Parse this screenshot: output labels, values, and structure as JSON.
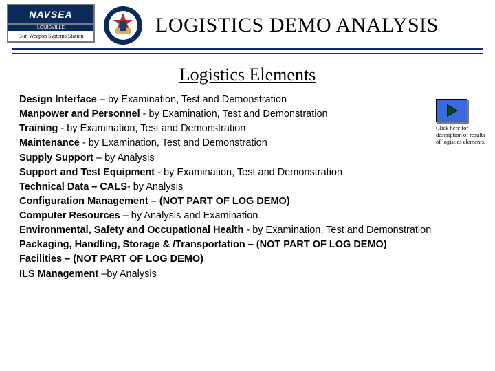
{
  "header": {
    "navsea_word": "NAVSEA",
    "navsea_city": "LOUISVILLE",
    "navsea_station": "Gun Weapon Systems Station",
    "main_title": "LOGISTICS  DEMO ANALYSIS"
  },
  "subtitle": " Logistics Elements ",
  "items": [
    {
      "label": "Design Interface",
      "sep": " – ",
      "desc": "by Examination, Test and Demonstration"
    },
    {
      "label": "Manpower and Personnel",
      "sep": " - ",
      "desc": "by Examination, Test and Demonstration"
    },
    {
      "label": "Training",
      "sep": " - ",
      "desc": "by Examination, Test and Demonstration"
    },
    {
      "label": "Maintenance",
      "sep": " - ",
      "desc": "by Examination, Test and Demonstration"
    },
    {
      "label": "Supply Support",
      "sep": " – ",
      "desc": "by Analysis"
    },
    {
      "label": "Support and Test Equipment",
      "sep": " - ",
      "desc": "by Examination, Test and Demonstration"
    },
    {
      "label": "Technical Data – CALS",
      "sep": "- ",
      "desc": "by Analysis"
    },
    {
      "label": "Configuration Management",
      "sep": " – ",
      "desc": "(NOT PART OF LOG DEMO)",
      "desc_bold": true
    },
    {
      "label": "Computer Resources",
      "sep": " – ",
      "desc": "by Analysis and Examination"
    },
    {
      "label": "Environmental, Safety and Occupational Health",
      "sep": " - ",
      "desc": "by Examination, Test and Demonstration"
    },
    {
      "label": "Packaging, Handling, Storage & /Transportation",
      "sep": " – ",
      "desc": "(NOT PART OF LOG DEMO)",
      "desc_bold": true
    },
    {
      "label": "Facilities",
      "sep": " – ",
      "desc": "(NOT PART OF LOG DEMO)",
      "desc_bold": true
    },
    {
      "label": "ILS Management",
      "sep": " –",
      "desc": "by Analysis"
    }
  ],
  "side": {
    "caption": "Click here for description of results of logistics elements."
  },
  "colors": {
    "rule": "#0a2a7a",
    "button_fill": "#3a6add",
    "navsea_bg": "#0a2a5a"
  }
}
